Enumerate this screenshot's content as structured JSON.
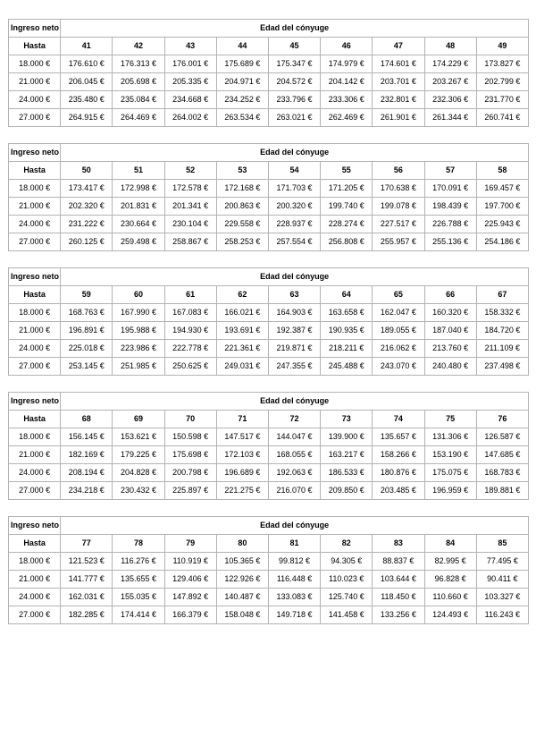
{
  "page": {
    "background_color": "#ffffff",
    "table_border_color": "#b3b3b3",
    "text_color": "#000000"
  },
  "tables": [
    {
      "income_header": "Ingreso neto",
      "age_header": "Edad del cónyuge",
      "row_header": "Hasta",
      "ages": [
        "41",
        "42",
        "43",
        "44",
        "45",
        "46",
        "47",
        "48",
        "49"
      ],
      "rows": [
        {
          "income": "18.000 €",
          "values": [
            "176.610 €",
            "176.313 €",
            "176.001 €",
            "175.689 €",
            "175.347 €",
            "174.979 €",
            "174.601 €",
            "174.229 €",
            "173.827 €"
          ]
        },
        {
          "income": "21.000 €",
          "values": [
            "206.045 €",
            "205.698 €",
            "205.335 €",
            "204.971 €",
            "204.572 €",
            "204.142 €",
            "203.701 €",
            "203.267 €",
            "202.799 €"
          ]
        },
        {
          "income": "24.000 €",
          "values": [
            "235.480 €",
            "235.084 €",
            "234.668 €",
            "234.252 €",
            "233.796 €",
            "233.306 €",
            "232.801 €",
            "232.306 €",
            "231.770 €"
          ]
        },
        {
          "income": "27.000 €",
          "values": [
            "264.915 €",
            "264.469 €",
            "264.002 €",
            "263.534 €",
            "263.021 €",
            "262.469 €",
            "261.901 €",
            "261.344 €",
            "260.741 €"
          ]
        }
      ]
    },
    {
      "income_header": "Ingreso neto",
      "age_header": "Edad del cónyuge",
      "row_header": "Hasta",
      "ages": [
        "50",
        "51",
        "52",
        "53",
        "54",
        "55",
        "56",
        "57",
        "58"
      ],
      "rows": [
        {
          "income": "18.000 €",
          "values": [
            "173.417 €",
            "172.998 €",
            "172.578 €",
            "172.168 €",
            "171.703 €",
            "171.205 €",
            "170.638 €",
            "170.091 €",
            "169.457 €"
          ]
        },
        {
          "income": "21.000 €",
          "values": [
            "202.320 €",
            "201.831 €",
            "201.341 €",
            "200.863 €",
            "200.320 €",
            "199.740 €",
            "199.078 €",
            "198.439 €",
            "197.700 €"
          ]
        },
        {
          "income": "24.000 €",
          "values": [
            "231.222 €",
            "230.664 €",
            "230.104 €",
            "229.558 €",
            "228.937 €",
            "228.274 €",
            "227.517 €",
            "226.788 €",
            "225.943 €"
          ]
        },
        {
          "income": "27.000 €",
          "values": [
            "260.125 €",
            "259.498 €",
            "258.867 €",
            "258.253 €",
            "257.554 €",
            "256.808 €",
            "255.957 €",
            "255.136 €",
            "254.186 €"
          ]
        }
      ]
    },
    {
      "income_header": "Ingreso neto",
      "age_header": "Edad del cónyuge",
      "row_header": "Hasta",
      "ages": [
        "59",
        "60",
        "61",
        "62",
        "63",
        "64",
        "65",
        "66",
        "67"
      ],
      "rows": [
        {
          "income": "18.000 €",
          "values": [
            "168.763 €",
            "167.990 €",
            "167.083 €",
            "166.021 €",
            "164.903 €",
            "163.658 €",
            "162.047 €",
            "160.320 €",
            "158.332 €"
          ]
        },
        {
          "income": "21.000 €",
          "values": [
            "196.891 €",
            "195.988 €",
            "194.930 €",
            "193.691 €",
            "192.387 €",
            "190.935 €",
            "189.055 €",
            "187.040 €",
            "184.720 €"
          ]
        },
        {
          "income": "24.000 €",
          "values": [
            "225.018 €",
            "223.986 €",
            "222.778 €",
            "221.361 €",
            "219.871 €",
            "218.211 €",
            "216.062 €",
            "213.760 €",
            "211.109 €"
          ]
        },
        {
          "income": "27.000 €",
          "values": [
            "253.145 €",
            "251.985 €",
            "250.625 €",
            "249.031 €",
            "247.355 €",
            "245.488 €",
            "243.070 €",
            "240.480 €",
            "237.498 €"
          ]
        }
      ]
    },
    {
      "income_header": "Ingreso neto",
      "age_header": "Edad del cónyuge",
      "row_header": "Hasta",
      "ages": [
        "68",
        "69",
        "70",
        "71",
        "72",
        "73",
        "74",
        "75",
        "76"
      ],
      "rows": [
        {
          "income": "18.000 €",
          "values": [
            "156.145 €",
            "153.621 €",
            "150.598 €",
            "147.517 €",
            "144.047 €",
            "139.900 €",
            "135.657 €",
            "131.306 €",
            "126.587 €"
          ]
        },
        {
          "income": "21.000 €",
          "values": [
            "182.169 €",
            "179.225 €",
            "175.698 €",
            "172.103 €",
            "168.055 €",
            "163.217 €",
            "158.266 €",
            "153.190 €",
            "147.685 €"
          ]
        },
        {
          "income": "24.000 €",
          "values": [
            "208.194 €",
            "204.828 €",
            "200.798 €",
            "196.689 €",
            "192.063 €",
            "186.533 €",
            "180.876 €",
            "175.075 €",
            "168.783 €"
          ]
        },
        {
          "income": "27.000 €",
          "values": [
            "234.218 €",
            "230.432 €",
            "225.897 €",
            "221.275 €",
            "216.070 €",
            "209.850 €",
            "203.485 €",
            "196.959 €",
            "189.881 €"
          ]
        }
      ]
    },
    {
      "income_header": "Ingreso neto",
      "age_header": "Edad del cónyuge",
      "row_header": "Hasta",
      "ages": [
        "77",
        "78",
        "79",
        "80",
        "81",
        "82",
        "83",
        "84",
        "85"
      ],
      "rows": [
        {
          "income": "18.000 €",
          "values": [
            "121.523 €",
            "116.276 €",
            "110.919 €",
            "105.365 €",
            "99.812 €",
            "94.305 €",
            "88.837 €",
            "82.995 €",
            "77.495 €"
          ]
        },
        {
          "income": "21.000 €",
          "values": [
            "141.777 €",
            "135.655 €",
            "129.406 €",
            "122.926 €",
            "116.448 €",
            "110.023 €",
            "103.644 €",
            "96.828 €",
            "90.411 €"
          ]
        },
        {
          "income": "24.000 €",
          "values": [
            "162.031 €",
            "155.035 €",
            "147.892 €",
            "140.487 €",
            "133.083 €",
            "125.740 €",
            "118.450 €",
            "110.660 €",
            "103.327 €"
          ]
        },
        {
          "income": "27.000 €",
          "values": [
            "182.285 €",
            "174.414 €",
            "166.379 €",
            "158.048 €",
            "149.718 €",
            "141.458 €",
            "133.256 €",
            "124.493 €",
            "116.243 €"
          ]
        }
      ]
    }
  ]
}
